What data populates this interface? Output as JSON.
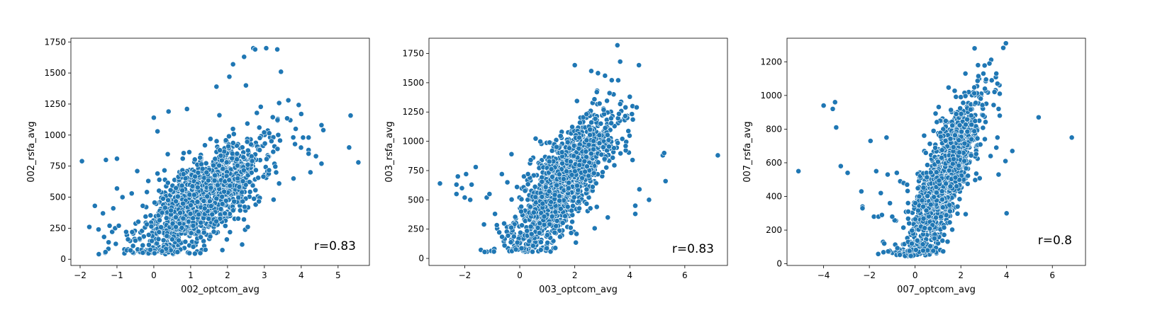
{
  "colors": {
    "point": "#1f77b4",
    "point_edge": "#ffffff",
    "axis": "#000000"
  },
  "chart_data": [
    {
      "type": "scatter",
      "xlabel": "002_optcom_avg",
      "ylabel": "002_rsfa_avg",
      "xlim": [
        -2.25,
        5.85
      ],
      "ylim": [
        -50,
        1780
      ],
      "xticks": [
        -2,
        -1,
        0,
        1,
        2,
        3,
        4,
        5
      ],
      "yticks": [
        0,
        250,
        500,
        750,
        1000,
        1250,
        1500,
        1750
      ],
      "annotation": "r=0.83",
      "grid": false,
      "cloud": {
        "x_center": 1.3,
        "x_spread": 0.85,
        "slope": 210,
        "intercept": 210,
        "noise": 170,
        "y_floor": 40,
        "count": 1400
      },
      "points": [
        [
          -1.95,
          790
        ],
        [
          -1.75,
          260
        ],
        [
          -1.6,
          430
        ],
        [
          -1.5,
          240
        ],
        [
          -1.35,
          180
        ],
        [
          -1.3,
          800
        ],
        [
          -1.2,
          270
        ],
        [
          -1.1,
          410
        ],
        [
          -1.05,
          250
        ],
        [
          -1.0,
          810
        ],
        [
          -1.0,
          570
        ],
        [
          -0.95,
          270
        ],
        [
          -0.85,
          500
        ],
        [
          -0.75,
          220
        ],
        [
          -0.7,
          160
        ],
        [
          -0.6,
          530
        ],
        [
          -0.5,
          150
        ],
        [
          -0.45,
          710
        ],
        [
          -0.3,
          430
        ],
        [
          -0.15,
          630
        ],
        [
          0.0,
          1140
        ],
        [
          0.1,
          1030
        ],
        [
          0.1,
          690
        ],
        [
          0.15,
          640
        ],
        [
          0.4,
          1190
        ],
        [
          0.5,
          160
        ],
        [
          0.6,
          260
        ],
        [
          0.9,
          1210
        ],
        [
          1.7,
          1390
        ],
        [
          2.05,
          1470
        ],
        [
          2.15,
          1570
        ],
        [
          2.45,
          1630
        ],
        [
          2.5,
          1400
        ],
        [
          2.7,
          1700
        ],
        [
          2.75,
          1690
        ],
        [
          3.05,
          1700
        ],
        [
          3.35,
          1690
        ],
        [
          3.45,
          1510
        ],
        [
          3.65,
          1280
        ],
        [
          3.85,
          1050
        ],
        [
          4.0,
          1170
        ],
        [
          4.05,
          980
        ],
        [
          4.2,
          980
        ],
        [
          4.2,
          880
        ],
        [
          4.2,
          850
        ],
        [
          4.25,
          700
        ],
        [
          4.4,
          830
        ],
        [
          4.55,
          770
        ],
        [
          4.55,
          1080
        ],
        [
          4.6,
          1040
        ],
        [
          5.3,
          900
        ],
        [
          5.55,
          780
        ],
        [
          2.55,
          260
        ],
        [
          3.4,
          610
        ],
        [
          3.25,
          480
        ]
      ]
    },
    {
      "type": "scatter",
      "xlabel": "003_optcom_avg",
      "ylabel": "003_rsfa_avg",
      "xlim": [
        -3.3,
        7.55
      ],
      "ylim": [
        -60,
        1880
      ],
      "xticks": [
        -2,
        0,
        2,
        4,
        6
      ],
      "yticks": [
        0,
        250,
        500,
        750,
        1000,
        1250,
        1500,
        1750
      ],
      "annotation": "r=0.83",
      "grid": false,
      "cloud": {
        "x_center": 1.6,
        "x_spread": 0.9,
        "slope": 250,
        "intercept": 250,
        "noise": 190,
        "y_floor": 55,
        "count": 1400
      },
      "points": [
        [
          -2.9,
          640
        ],
        [
          -2.3,
          550
        ],
        [
          -2.3,
          630
        ],
        [
          -2.25,
          700
        ],
        [
          -2.1,
          600
        ],
        [
          -2.0,
          520
        ],
        [
          -1.95,
          720
        ],
        [
          -1.8,
          500
        ],
        [
          -1.6,
          780
        ],
        [
          -1.75,
          630
        ],
        [
          -1.3,
          290
        ],
        [
          -1.2,
          520
        ],
        [
          -1.1,
          550
        ],
        [
          -0.9,
          380
        ],
        [
          -0.65,
          720
        ],
        [
          -0.45,
          650
        ],
        [
          -0.3,
          890
        ],
        [
          -0.1,
          610
        ],
        [
          0.3,
          720
        ],
        [
          0.4,
          840
        ],
        [
          2.0,
          1650
        ],
        [
          2.6,
          1600
        ],
        [
          3.1,
          1560
        ],
        [
          3.55,
          1820
        ],
        [
          3.65,
          1680
        ],
        [
          4.0,
          1380
        ],
        [
          4.1,
          1300
        ],
        [
          4.25,
          1290
        ],
        [
          3.85,
          960
        ],
        [
          4.1,
          840
        ],
        [
          4.2,
          450
        ],
        [
          4.2,
          380
        ],
        [
          4.35,
          590
        ],
        [
          4.7,
          500
        ],
        [
          5.2,
          880
        ],
        [
          5.25,
          900
        ],
        [
          5.3,
          660
        ],
        [
          7.2,
          880
        ],
        [
          3.2,
          350
        ],
        [
          2.8,
          440
        ]
      ]
    },
    {
      "type": "scatter",
      "xlabel": "007_optcom_avg",
      "ylabel": "007_rsfa_avg",
      "xlim": [
        -5.6,
        7.45
      ],
      "ylim": [
        -10,
        1340
      ],
      "xticks": [
        -4,
        -2,
        0,
        2,
        4,
        6
      ],
      "yticks": [
        0,
        200,
        400,
        600,
        800,
        1000,
        1200
      ],
      "annotation": "r=0.8",
      "grid": false,
      "cloud": {
        "x_center": 1.2,
        "x_spread": 0.8,
        "slope": 260,
        "intercept": 170,
        "noise": 150,
        "y_floor": 45,
        "count": 1300
      },
      "points": [
        [
          -5.1,
          550
        ],
        [
          -4.0,
          940
        ],
        [
          -3.6,
          920
        ],
        [
          -3.5,
          960
        ],
        [
          -3.45,
          810
        ],
        [
          -3.25,
          580
        ],
        [
          -2.95,
          540
        ],
        [
          -2.35,
          430
        ],
        [
          -2.3,
          340
        ],
        [
          -2.3,
          330
        ],
        [
          -1.95,
          730
        ],
        [
          -1.8,
          280
        ],
        [
          -1.7,
          550
        ],
        [
          -1.6,
          280
        ],
        [
          -1.45,
          290
        ],
        [
          -1.5,
          420
        ],
        [
          -1.4,
          130
        ],
        [
          -1.35,
          120
        ],
        [
          -1.25,
          750
        ],
        [
          -1.2,
          530
        ],
        [
          -1.1,
          360
        ],
        [
          -1.0,
          280
        ],
        [
          -0.8,
          540
        ],
        [
          -0.65,
          490
        ],
        [
          -0.5,
          480
        ],
        [
          -0.35,
          470
        ],
        [
          -0.3,
          310
        ],
        [
          2.2,
          1130
        ],
        [
          2.6,
          1280
        ],
        [
          2.75,
          1180
        ],
        [
          3.25,
          1190
        ],
        [
          3.05,
          1040
        ],
        [
          3.35,
          1090
        ],
        [
          3.55,
          1130
        ],
        [
          3.6,
          1070
        ],
        [
          3.7,
          1010
        ],
        [
          3.65,
          920
        ],
        [
          3.7,
          880
        ],
        [
          3.6,
          750
        ],
        [
          3.55,
          690
        ],
        [
          3.65,
          530
        ],
        [
          3.95,
          610
        ],
        [
          4.0,
          300
        ],
        [
          4.25,
          670
        ],
        [
          5.4,
          870
        ],
        [
          6.85,
          750
        ],
        [
          3.3,
          640
        ]
      ]
    }
  ]
}
